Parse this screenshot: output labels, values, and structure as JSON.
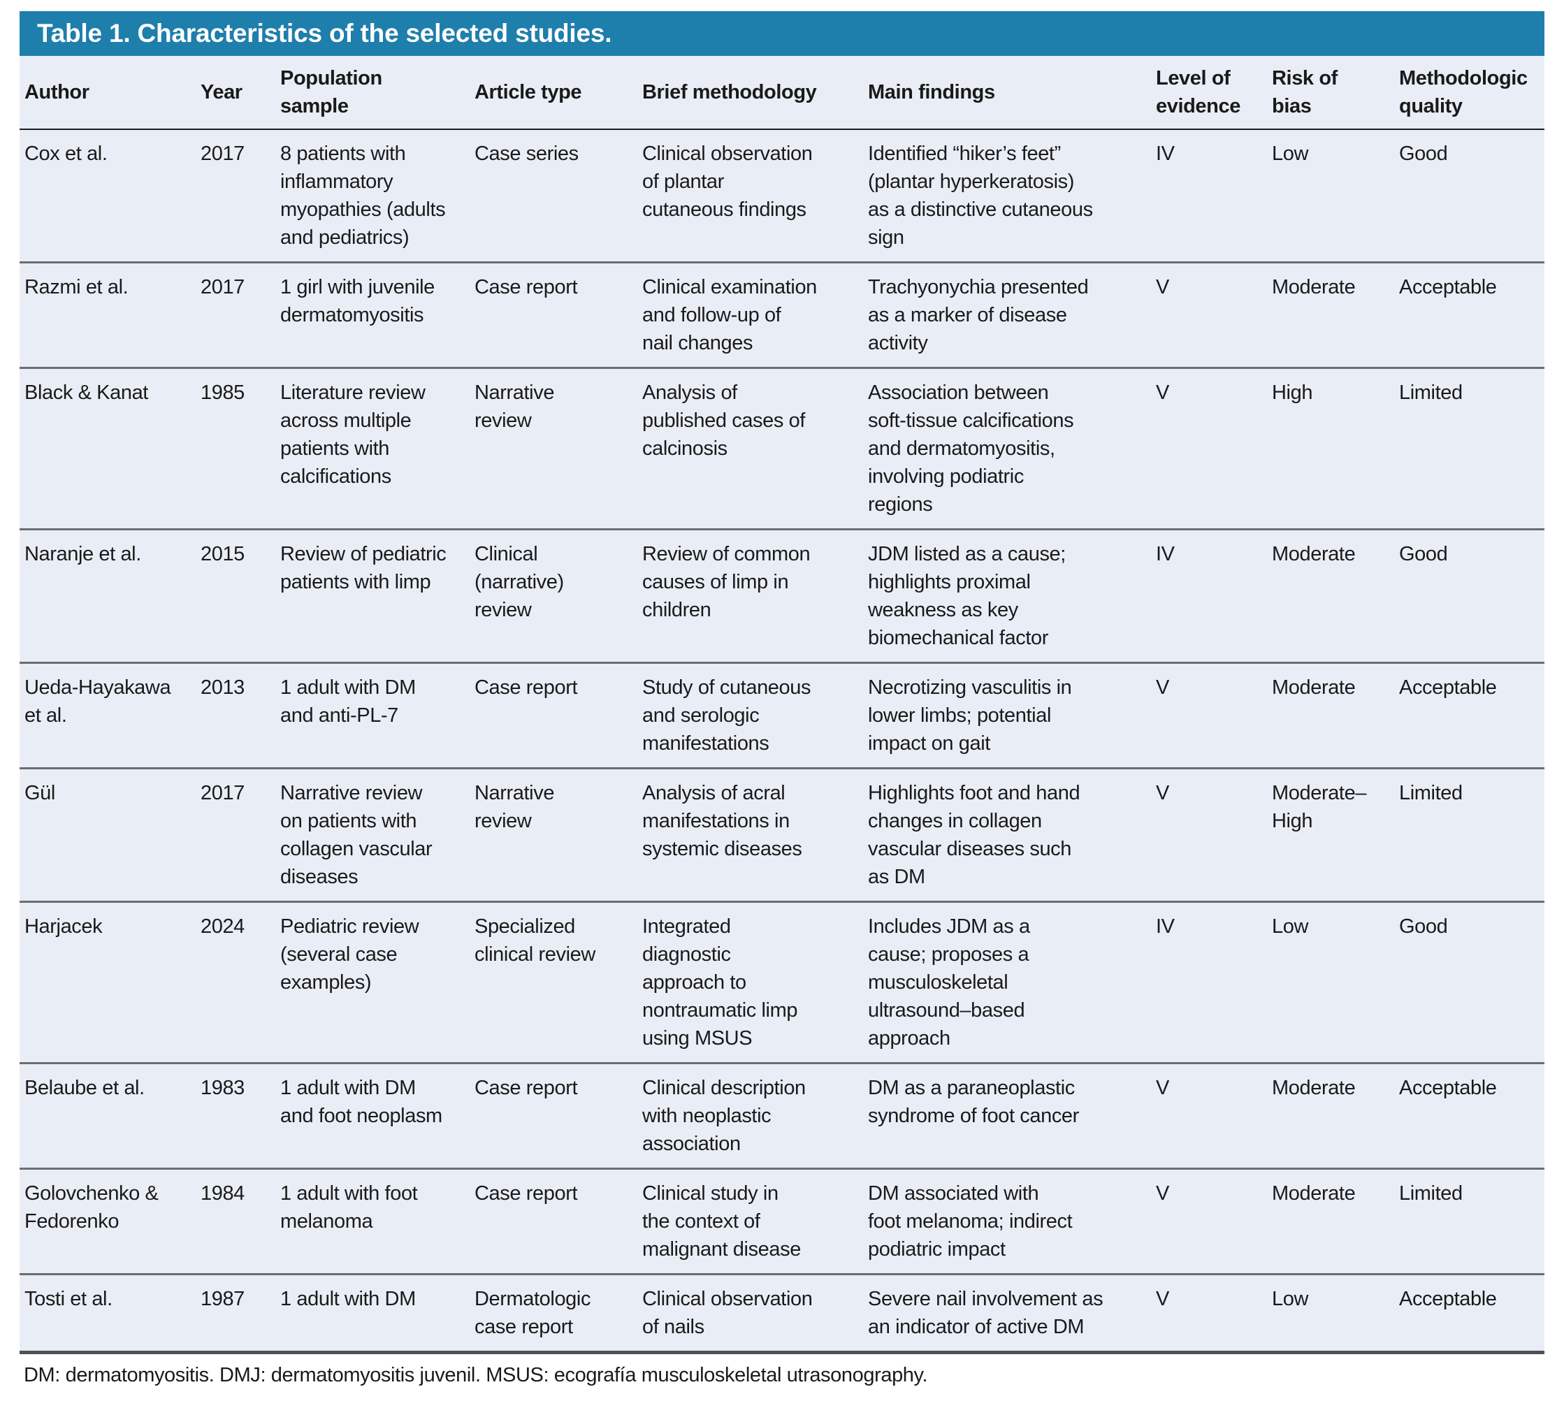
{
  "title": "Table 1. Characteristics of the selected studies.",
  "colors": {
    "header_bar": "#1e7eac",
    "table_background": "#e9eef6",
    "title_text": "#ffffff",
    "body_text": "#1a1a1a",
    "row_separator": "#6a6e73"
  },
  "table": {
    "columns": [
      "Author",
      "Year",
      "Population\nsample",
      "Article type",
      "Brief methodology",
      "Main findings",
      "Level of\nevidence",
      "Risk of\nbias",
      "Methodologic\nquality"
    ],
    "rows": [
      [
        "Cox et al.",
        "2017",
        "8 patients with\ninflammatory\nmyopathies (adults\nand pediatrics)",
        "Case series",
        "Clinical observation\nof plantar\ncutaneous findings",
        "Identified “hiker’s feet”\n(plantar hyperkeratosis)\nas a distinctive cutaneous\nsign",
        "IV",
        "Low",
        "Good"
      ],
      [
        "Razmi et al.",
        "2017",
        "1 girl with juvenile\ndermatomyositis",
        "Case report",
        "Clinical examination\nand follow-up of\nnail changes",
        "Trachyonychia presented\nas a marker of disease\nactivity",
        "V",
        "Moderate",
        "Acceptable"
      ],
      [
        "Black & Kanat",
        "1985",
        "Literature review\nacross multiple\npatients with\ncalcifications",
        "Narrative\nreview",
        "Analysis of\npublished cases of\ncalcinosis",
        "Association between\nsoft-tissue calcifications\nand dermatomyositis,\ninvolving podiatric\nregions",
        "V",
        "High",
        "Limited"
      ],
      [
        "Naranje et al.",
        "2015",
        "Review of pediatric\npatients with limp",
        "Clinical\n(narrative)\nreview",
        "Review of common\ncauses of limp in\nchildren",
        "JDM listed as a cause;\nhighlights proximal\nweakness as key\nbiomechanical factor",
        "IV",
        "Moderate",
        "Good"
      ],
      [
        "Ueda-Hayakawa\net al.",
        "2013",
        "1 adult with DM\nand anti-PL-7",
        "Case report",
        "Study of cutaneous\nand serologic\nmanifestations",
        "Necrotizing vasculitis in\nlower limbs; potential\nimpact on gait",
        "V",
        "Moderate",
        "Acceptable"
      ],
      [
        "Gül",
        "2017",
        "Narrative review\non patients with\ncollagen vascular\ndiseases",
        "Narrative\nreview",
        "Analysis of acral\nmanifestations in\nsystemic diseases",
        "Highlights foot and hand\nchanges in collagen\nvascular diseases such\nas DM",
        "V",
        "Moderate–\nHigh",
        "Limited"
      ],
      [
        "Harjacek",
        "2024",
        "Pediatric review\n(several case\nexamples)",
        "Specialized\nclinical review",
        "Integrated\ndiagnostic\napproach to\nnontraumatic limp\nusing MSUS",
        "Includes JDM as a\ncause; proposes a\nmusculoskeletal\nultrasound–based\napproach",
        "IV",
        "Low",
        "Good"
      ],
      [
        "Belaube et al.",
        "1983",
        "1 adult with DM\nand foot neoplasm",
        "Case report",
        "Clinical description\nwith neoplastic\nassociation",
        "DM as a paraneoplastic\nsyndrome of foot cancer",
        "V",
        "Moderate",
        "Acceptable"
      ],
      [
        "Golovchenko &\nFedorenko",
        "1984",
        "1 adult with foot\nmelanoma",
        "Case report",
        "Clinical study in\nthe context of\nmalignant disease",
        "DM associated with\nfoot melanoma; indirect\npodiatric impact",
        "V",
        "Moderate",
        "Limited"
      ],
      [
        "Tosti et al.",
        "1987",
        "1 adult with DM",
        "Dermatologic\ncase report",
        "Clinical observation\nof nails",
        "Severe nail involvement as\nan indicator of active DM",
        "V",
        "Low",
        "Acceptable"
      ]
    ]
  },
  "footnote": "DM: dermatomyositis. DMJ: dermatomyositis juvenil. MSUS: ecografía musculoskeletal utrasonography."
}
